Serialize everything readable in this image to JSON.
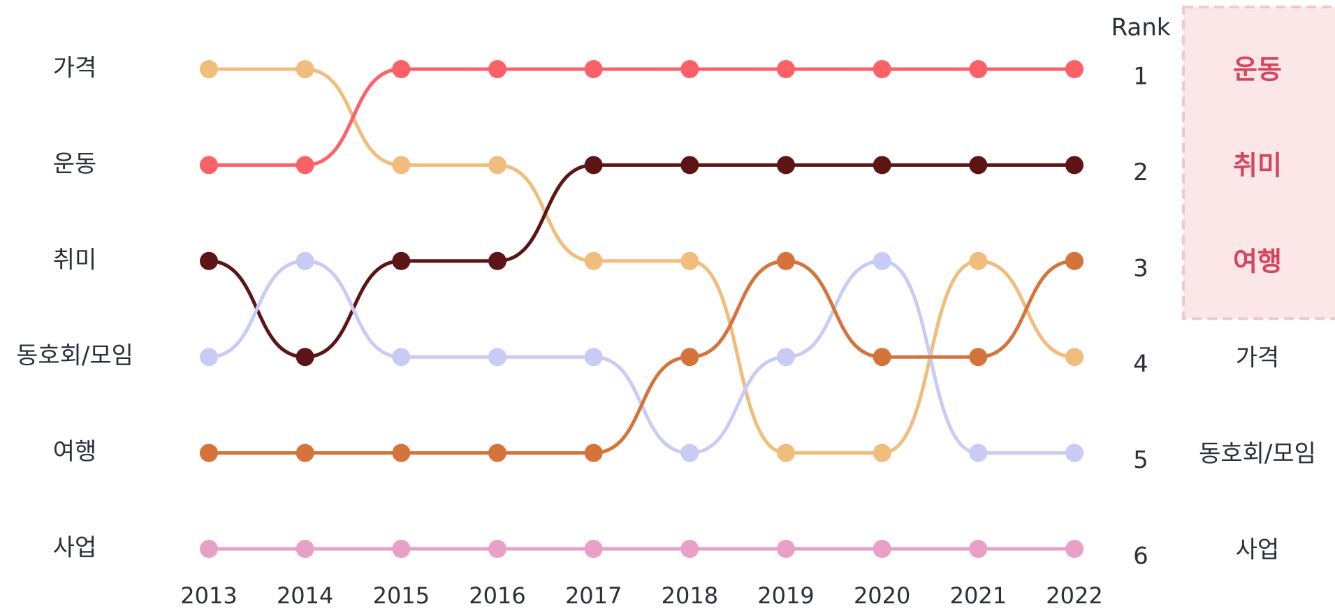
{
  "chart_data": {
    "type": "bump",
    "rank_label": "Rank",
    "categories": [
      "2013",
      "2014",
      "2015",
      "2016",
      "2017",
      "2018",
      "2019",
      "2020",
      "2021",
      "2022"
    ],
    "series": [
      {
        "name": "가격",
        "color": "#f0bd7c",
        "values": [
          1,
          1,
          2,
          2,
          3,
          3,
          5,
          5,
          3,
          4
        ]
      },
      {
        "name": "운동",
        "color": "#fd6167",
        "values": [
          2,
          2,
          1,
          1,
          1,
          1,
          1,
          1,
          1,
          1
        ]
      },
      {
        "name": "취미",
        "color": "#5c1414",
        "values": [
          3,
          4,
          3,
          3,
          2,
          2,
          2,
          2,
          2,
          2
        ]
      },
      {
        "name": "동호회/모임",
        "color": "#c8ccf5",
        "values": [
          4,
          3,
          4,
          4,
          4,
          5,
          4,
          3,
          5,
          5
        ]
      },
      {
        "name": "여행",
        "color": "#d5733a",
        "values": [
          5,
          5,
          5,
          5,
          5,
          4,
          3,
          4,
          4,
          3
        ]
      },
      {
        "name": "사업",
        "color": "#e8a0c8",
        "values": [
          6,
          6,
          6,
          6,
          6,
          6,
          6,
          6,
          6,
          6
        ]
      }
    ],
    "ylim": [
      1,
      6
    ],
    "y_inverted": true,
    "yticks": [
      1,
      2,
      3,
      4,
      5,
      6
    ],
    "highlight_top": 3,
    "highlight_color": "#d6455e"
  }
}
